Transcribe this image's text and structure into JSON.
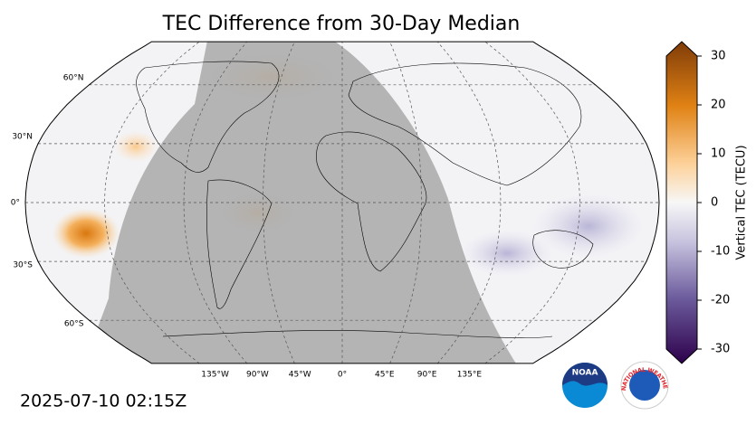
{
  "title": "TEC Difference from 30-Day Median",
  "timestamp": "2025-07-10 02:15Z",
  "map": {
    "lat_lines": [
      {
        "value": 60,
        "label": "60°N"
      },
      {
        "value": 30,
        "label": "30°N"
      },
      {
        "value": 0,
        "label": "0°"
      },
      {
        "value": -30,
        "label": "30°S"
      },
      {
        "value": -60,
        "label": "60°S"
      }
    ],
    "lon_lines": [
      {
        "value": -135,
        "label": "135°W"
      },
      {
        "value": -90,
        "label": "90°W"
      },
      {
        "value": -45,
        "label": "45°W"
      },
      {
        "value": 0,
        "label": "0°"
      },
      {
        "value": 45,
        "label": "45°E"
      },
      {
        "value": 90,
        "label": "90°E"
      },
      {
        "value": 135,
        "label": "135°E"
      }
    ]
  },
  "colorbar": {
    "label": "Vertical TEC (TECU)",
    "lim": [
      -30,
      30
    ],
    "ticks": [
      -30,
      -20,
      -10,
      0,
      10,
      20,
      30
    ]
  },
  "logos": {
    "noaa": "NOAA",
    "nws": "NATIONAL WEATHER SERVICE"
  }
}
